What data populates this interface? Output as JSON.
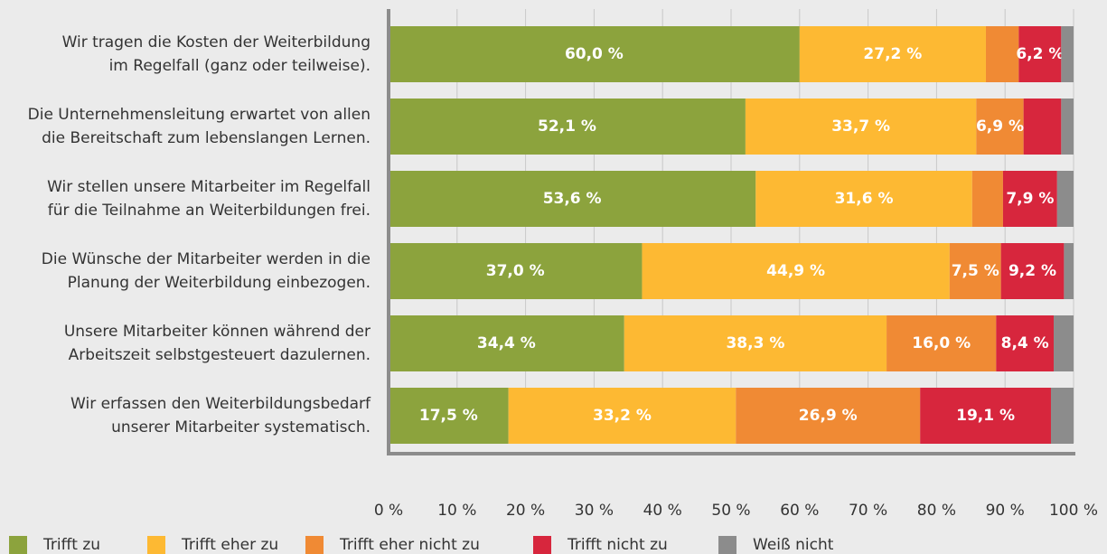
{
  "chart_data": {
    "type": "stacked-bar-horizontal",
    "categories": [
      "Wir tragen die Kosten der Weiterbildung\nim Regelfall (ganz oder teilweise).",
      "Die Unternehmensleitung erwartet von allen\ndie Bereitschaft zum lebenslangen Lernen.",
      "Wir stellen unsere Mitarbeiter im Regelfall\nfür die Teilnahme an Weiterbildungen frei.",
      "Die Wünsche der Mitarbeiter werden in die\nPlanung der Weiterbildung einbezogen.",
      "Unsere Mitarbeiter können während der\nArbeitszeit selbstgesteuert dazulernen.",
      "Wir erfassen den Weiterbildungsbedarf\nunserer Mitarbeiter systematisch."
    ],
    "series": [
      {
        "name": "Trifft zu",
        "color": "#8ca33d",
        "values": [
          60.0,
          52.1,
          53.6,
          37.0,
          34.4,
          17.5
        ],
        "value_labels": [
          "60,0 %",
          "52,1 %",
          "53,6 %",
          "37,0 %",
          "34,4 %",
          "17,5 %"
        ]
      },
      {
        "name": "Trifft eher zu",
        "color": "#fdb933",
        "values": [
          27.2,
          33.7,
          31.6,
          44.9,
          38.3,
          33.2
        ],
        "value_labels": [
          "27,2 %",
          "33,7 %",
          "31,6 %",
          "44,9 %",
          "38,3 %",
          "33,2 %"
        ]
      },
      {
        "name": "Trifft eher nicht zu",
        "color": "#f08a34",
        "values": [
          4.8,
          6.9,
          4.5,
          7.5,
          16.0,
          26.9
        ],
        "value_labels": [
          null,
          "6,9 %",
          null,
          "7,5 %",
          "16,0 %",
          "26,9 %"
        ]
      },
      {
        "name": "Trifft nicht zu",
        "color": "#d7263d",
        "values": [
          6.2,
          5.5,
          7.9,
          9.2,
          8.4,
          19.1
        ],
        "value_labels": [
          "6,2 %",
          null,
          "7,9 %",
          "9,2 %",
          "8,4 %",
          "19,1 %"
        ]
      },
      {
        "name": "Weiß nicht",
        "color": "#8c8c8c",
        "values": [
          1.8,
          1.8,
          2.4,
          1.4,
          2.9,
          3.3
        ],
        "value_labels": [
          null,
          null,
          null,
          null,
          null,
          null
        ]
      }
    ],
    "xlim": [
      0,
      100
    ],
    "xticks": [
      {
        "value": 0,
        "label": "0 %"
      },
      {
        "value": 10,
        "label": "10 %"
      },
      {
        "value": 20,
        "label": "20 %"
      },
      {
        "value": 30,
        "label": "30 %"
      },
      {
        "value": 40,
        "label": "40 %"
      },
      {
        "value": 50,
        "label": "50 %"
      },
      {
        "value": 60,
        "label": "60 %"
      },
      {
        "value": 70,
        "label": "70 %"
      },
      {
        "value": 80,
        "label": "80 %"
      },
      {
        "value": 90,
        "label": "90 %"
      },
      {
        "value": 100,
        "label": "100 %"
      }
    ],
    "grid": true
  }
}
